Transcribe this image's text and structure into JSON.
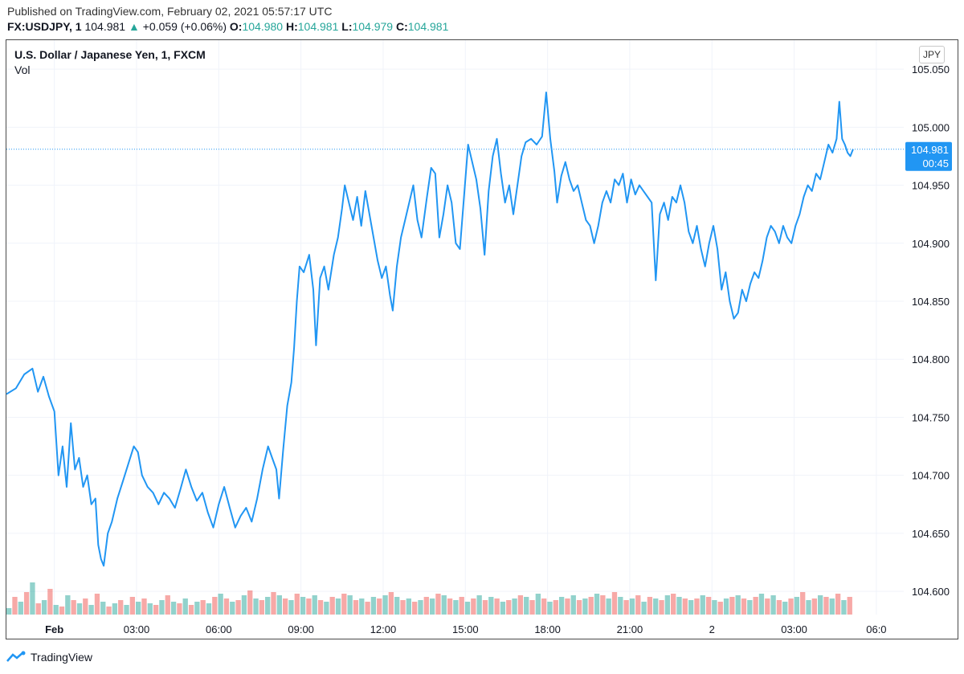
{
  "header": {
    "published": "Published on TradingView.com, February 02, 2021 05:57:17 UTC",
    "symbol": "FX:USDJPY, 1",
    "last": "104.981",
    "arrow": "▲",
    "change": "+0.059 (+0.06%)",
    "o_label": "O:",
    "o_value": "104.980",
    "h_label": "H:",
    "h_value": "104.981",
    "l_label": "L:",
    "l_value": "104.979",
    "c_label": "C:",
    "c_value": "104.981"
  },
  "chart_title": "U.S. Dollar / Japanese Yen, 1, FXCM",
  "volume_label": "Vol",
  "currency_button": "JPY",
  "brand": "TradingView",
  "colors": {
    "line": "#2196f3",
    "grid": "#f0f3fa",
    "up_volume": "#26a69a",
    "down_volume": "#ef5350",
    "text": "#131722"
  },
  "chart_data": {
    "type": "line",
    "title": "U.S. Dollar / Japanese Yen, 1, FXCM",
    "grid": true,
    "ylim": [
      104.58,
      105.075
    ],
    "y_ticks": [
      "105.050",
      "105.000",
      "104.950",
      "104.900",
      "104.850",
      "104.800",
      "104.750",
      "104.700",
      "104.650",
      "104.600"
    ],
    "x_tick_labels": [
      "Feb",
      "03:00",
      "06:00",
      "09:00",
      "12:00",
      "15:00",
      "18:00",
      "21:00",
      "2",
      "03:00",
      "06:0"
    ],
    "x_tick_hours": [
      0,
      3,
      6,
      9,
      12,
      15,
      18,
      21,
      24,
      27,
      30
    ],
    "x_range_hours": [
      -1.75,
      31.0
    ],
    "last_price_label": "104.981",
    "countdown_label": "00:45",
    "series": [
      {
        "points": [
          [
            -1.75,
            104.77
          ],
          [
            -1.4,
            104.775
          ],
          [
            -1.1,
            104.787
          ],
          [
            -0.8,
            104.792
          ],
          [
            -0.6,
            104.772
          ],
          [
            -0.4,
            104.785
          ],
          [
            -0.2,
            104.768
          ],
          [
            0.0,
            104.755
          ],
          [
            0.15,
            104.7
          ],
          [
            0.3,
            104.725
          ],
          [
            0.45,
            104.69
          ],
          [
            0.6,
            104.745
          ],
          [
            0.75,
            104.705
          ],
          [
            0.9,
            104.715
          ],
          [
            1.05,
            104.69
          ],
          [
            1.2,
            104.7
          ],
          [
            1.35,
            104.675
          ],
          [
            1.5,
            104.68
          ],
          [
            1.6,
            104.64
          ],
          [
            1.7,
            104.628
          ],
          [
            1.8,
            104.622
          ],
          [
            1.95,
            104.65
          ],
          [
            2.1,
            104.66
          ],
          [
            2.3,
            104.68
          ],
          [
            2.5,
            104.695
          ],
          [
            2.7,
            104.71
          ],
          [
            2.9,
            104.725
          ],
          [
            3.05,
            104.72
          ],
          [
            3.2,
            104.7
          ],
          [
            3.4,
            104.69
          ],
          [
            3.6,
            104.685
          ],
          [
            3.8,
            104.675
          ],
          [
            4.0,
            104.685
          ],
          [
            4.2,
            104.68
          ],
          [
            4.4,
            104.672
          ],
          [
            4.6,
            104.688
          ],
          [
            4.8,
            104.705
          ],
          [
            5.0,
            104.69
          ],
          [
            5.2,
            104.678
          ],
          [
            5.4,
            104.685
          ],
          [
            5.6,
            104.668
          ],
          [
            5.8,
            104.655
          ],
          [
            6.0,
            104.675
          ],
          [
            6.2,
            104.69
          ],
          [
            6.4,
            104.672
          ],
          [
            6.6,
            104.655
          ],
          [
            6.8,
            104.665
          ],
          [
            7.0,
            104.672
          ],
          [
            7.2,
            104.66
          ],
          [
            7.4,
            104.68
          ],
          [
            7.6,
            104.705
          ],
          [
            7.8,
            104.725
          ],
          [
            7.95,
            104.715
          ],
          [
            8.1,
            104.705
          ],
          [
            8.2,
            104.68
          ],
          [
            8.35,
            104.722
          ],
          [
            8.5,
            104.76
          ],
          [
            8.65,
            104.78
          ],
          [
            8.75,
            104.81
          ],
          [
            8.85,
            104.85
          ],
          [
            8.95,
            104.88
          ],
          [
            9.1,
            104.875
          ],
          [
            9.3,
            104.89
          ],
          [
            9.45,
            104.86
          ],
          [
            9.55,
            104.812
          ],
          [
            9.7,
            104.87
          ],
          [
            9.85,
            104.88
          ],
          [
            10.0,
            104.86
          ],
          [
            10.2,
            104.89
          ],
          [
            10.35,
            104.905
          ],
          [
            10.5,
            104.93
          ],
          [
            10.6,
            104.95
          ],
          [
            10.75,
            104.935
          ],
          [
            10.9,
            104.92
          ],
          [
            11.05,
            104.94
          ],
          [
            11.2,
            104.915
          ],
          [
            11.35,
            104.945
          ],
          [
            11.5,
            104.925
          ],
          [
            11.65,
            104.905
          ],
          [
            11.8,
            104.885
          ],
          [
            11.95,
            104.87
          ],
          [
            12.1,
            104.88
          ],
          [
            12.25,
            104.855
          ],
          [
            12.35,
            104.842
          ],
          [
            12.5,
            104.88
          ],
          [
            12.65,
            104.905
          ],
          [
            12.8,
            104.92
          ],
          [
            12.95,
            104.935
          ],
          [
            13.1,
            104.95
          ],
          [
            13.25,
            104.92
          ],
          [
            13.4,
            104.905
          ],
          [
            13.6,
            104.94
          ],
          [
            13.75,
            104.965
          ],
          [
            13.9,
            104.96
          ],
          [
            14.05,
            104.905
          ],
          [
            14.2,
            104.925
          ],
          [
            14.35,
            104.95
          ],
          [
            14.5,
            104.935
          ],
          [
            14.65,
            104.9
          ],
          [
            14.8,
            104.895
          ],
          [
            14.95,
            104.94
          ],
          [
            15.1,
            104.985
          ],
          [
            15.25,
            104.97
          ],
          [
            15.4,
            104.955
          ],
          [
            15.55,
            104.93
          ],
          [
            15.7,
            104.89
          ],
          [
            15.85,
            104.945
          ],
          [
            16.0,
            104.975
          ],
          [
            16.15,
            104.99
          ],
          [
            16.3,
            104.96
          ],
          [
            16.45,
            104.935
          ],
          [
            16.6,
            104.95
          ],
          [
            16.75,
            104.925
          ],
          [
            16.9,
            104.95
          ],
          [
            17.05,
            104.975
          ],
          [
            17.2,
            104.987
          ],
          [
            17.4,
            104.99
          ],
          [
            17.6,
            104.985
          ],
          [
            17.8,
            104.992
          ],
          [
            17.95,
            105.03
          ],
          [
            18.1,
            104.99
          ],
          [
            18.25,
            104.962
          ],
          [
            18.35,
            104.935
          ],
          [
            18.5,
            104.958
          ],
          [
            18.65,
            104.97
          ],
          [
            18.8,
            104.955
          ],
          [
            18.95,
            104.945
          ],
          [
            19.1,
            104.95
          ],
          [
            19.25,
            104.935
          ],
          [
            19.4,
            104.92
          ],
          [
            19.55,
            104.915
          ],
          [
            19.7,
            104.9
          ],
          [
            19.85,
            104.915
          ],
          [
            20.0,
            104.935
          ],
          [
            20.15,
            104.945
          ],
          [
            20.3,
            104.935
          ],
          [
            20.45,
            104.955
          ],
          [
            20.6,
            104.95
          ],
          [
            20.75,
            104.96
          ],
          [
            20.9,
            104.935
          ],
          [
            21.05,
            104.955
          ],
          [
            21.2,
            104.942
          ],
          [
            21.35,
            104.95
          ],
          [
            21.5,
            104.945
          ],
          [
            21.65,
            104.94
          ],
          [
            21.8,
            104.935
          ],
          [
            21.95,
            104.868
          ],
          [
            22.1,
            104.925
          ],
          [
            22.25,
            104.935
          ],
          [
            22.4,
            104.92
          ],
          [
            22.55,
            104.94
          ],
          [
            22.7,
            104.935
          ],
          [
            22.85,
            104.95
          ],
          [
            23.0,
            104.935
          ],
          [
            23.15,
            104.91
          ],
          [
            23.3,
            104.9
          ],
          [
            23.45,
            104.915
          ],
          [
            23.6,
            104.895
          ],
          [
            23.75,
            104.88
          ],
          [
            23.9,
            104.9
          ],
          [
            24.05,
            104.915
          ],
          [
            24.2,
            104.895
          ],
          [
            24.35,
            104.86
          ],
          [
            24.5,
            104.875
          ],
          [
            24.65,
            104.85
          ],
          [
            24.8,
            104.835
          ],
          [
            24.95,
            104.84
          ],
          [
            25.1,
            104.86
          ],
          [
            25.25,
            104.85
          ],
          [
            25.4,
            104.865
          ],
          [
            25.55,
            104.875
          ],
          [
            25.7,
            104.87
          ],
          [
            25.85,
            104.885
          ],
          [
            26.0,
            104.905
          ],
          [
            26.15,
            104.915
          ],
          [
            26.3,
            104.91
          ],
          [
            26.45,
            104.9
          ],
          [
            26.6,
            104.915
          ],
          [
            26.75,
            104.905
          ],
          [
            26.9,
            104.9
          ],
          [
            27.05,
            104.915
          ],
          [
            27.2,
            104.925
          ],
          [
            27.35,
            104.94
          ],
          [
            27.5,
            104.95
          ],
          [
            27.65,
            104.945
          ],
          [
            27.8,
            104.96
          ],
          [
            27.95,
            104.955
          ],
          [
            28.1,
            104.97
          ],
          [
            28.25,
            104.985
          ],
          [
            28.4,
            104.978
          ],
          [
            28.55,
            104.99
          ],
          [
            28.65,
            105.022
          ],
          [
            28.75,
            104.99
          ],
          [
            28.85,
            104.985
          ],
          [
            28.95,
            104.978
          ],
          [
            29.05,
            104.975
          ],
          [
            29.15,
            104.981
          ]
        ]
      }
    ],
    "volume": [
      4,
      11,
      8,
      14,
      20,
      7,
      9,
      16,
      6,
      5,
      12,
      9,
      7,
      10,
      6,
      13,
      8,
      5,
      7,
      9,
      6,
      11,
      8,
      10,
      7,
      6,
      9,
      12,
      8,
      7,
      10,
      6,
      8,
      9,
      7,
      11,
      13,
      10,
      8,
      9,
      12,
      15,
      10,
      9,
      11,
      14,
      12,
      10,
      9,
      13,
      11,
      10,
      12,
      9,
      8,
      11,
      10,
      13,
      12,
      9,
      10,
      8,
      11,
      10,
      12,
      14,
      11,
      9,
      10,
      8,
      9,
      11,
      10,
      13,
      12,
      10,
      9,
      11,
      8,
      10,
      12,
      9,
      11,
      10,
      8,
      9,
      10,
      12,
      11,
      9,
      13,
      10,
      8,
      9,
      11,
      10,
      12,
      9,
      10,
      11,
      13,
      12,
      10,
      14,
      11,
      9,
      10,
      12,
      8,
      11,
      10,
      9,
      12,
      13,
      11,
      10,
      9,
      10,
      12,
      11,
      9,
      8,
      10,
      11,
      12,
      10,
      9,
      11,
      13,
      10,
      12,
      9,
      8,
      10,
      11,
      14,
      9,
      10,
      12,
      11,
      10,
      13,
      9,
      11
    ]
  }
}
